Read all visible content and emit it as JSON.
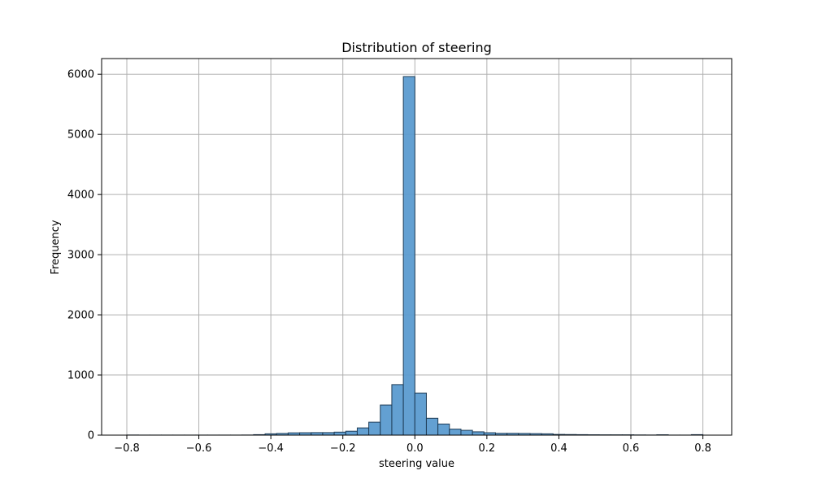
{
  "chart_data": {
    "type": "bar",
    "title": "Distribution of steering",
    "xlabel": "steering value",
    "ylabel": "Frequency",
    "xlim": [
      -0.87,
      0.88
    ],
    "ylim": [
      0,
      6260
    ],
    "grid": true,
    "bar_color": "#5b9bd0",
    "bar_edge_color": "#1f3d57",
    "x_ticks": [
      {
        "value": -0.8,
        "label": "−0.8"
      },
      {
        "value": -0.6,
        "label": "−0.6"
      },
      {
        "value": -0.4,
        "label": "−0.4"
      },
      {
        "value": -0.2,
        "label": "−0.2"
      },
      {
        "value": 0.0,
        "label": "0.0"
      },
      {
        "value": 0.2,
        "label": "0.2"
      },
      {
        "value": 0.4,
        "label": "0.4"
      },
      {
        "value": 0.6,
        "label": "0.6"
      },
      {
        "value": 0.8,
        "label": "0.8"
      }
    ],
    "y_ticks": [
      {
        "value": 0,
        "label": "0"
      },
      {
        "value": 1000,
        "label": "1000"
      },
      {
        "value": 2000,
        "label": "2000"
      },
      {
        "value": 3000,
        "label": "3000"
      },
      {
        "value": 4000,
        "label": "4000"
      },
      {
        "value": 5000,
        "label": "5000"
      },
      {
        "value": 6000,
        "label": "6000"
      }
    ],
    "bins": [
      {
        "x0": -0.8,
        "x1": -0.768,
        "value": 2
      },
      {
        "x0": -0.768,
        "x1": -0.736,
        "value": 1
      },
      {
        "x0": -0.736,
        "x1": -0.704,
        "value": 1
      },
      {
        "x0": -0.704,
        "x1": -0.672,
        "value": 1
      },
      {
        "x0": -0.672,
        "x1": -0.64,
        "value": 1
      },
      {
        "x0": -0.64,
        "x1": -0.608,
        "value": 1
      },
      {
        "x0": -0.608,
        "x1": -0.576,
        "value": 1
      },
      {
        "x0": -0.576,
        "x1": -0.544,
        "value": 1
      },
      {
        "x0": -0.544,
        "x1": -0.512,
        "value": 1
      },
      {
        "x0": -0.512,
        "x1": -0.48,
        "value": 1
      },
      {
        "x0": -0.48,
        "x1": -0.448,
        "value": 2
      },
      {
        "x0": -0.448,
        "x1": -0.416,
        "value": 8
      },
      {
        "x0": -0.416,
        "x1": -0.384,
        "value": 22
      },
      {
        "x0": -0.384,
        "x1": -0.352,
        "value": 28
      },
      {
        "x0": -0.352,
        "x1": -0.32,
        "value": 38
      },
      {
        "x0": -0.32,
        "x1": -0.288,
        "value": 40
      },
      {
        "x0": -0.288,
        "x1": -0.256,
        "value": 42
      },
      {
        "x0": -0.256,
        "x1": -0.224,
        "value": 42
      },
      {
        "x0": -0.224,
        "x1": -0.192,
        "value": 50
      },
      {
        "x0": -0.192,
        "x1": -0.16,
        "value": 65
      },
      {
        "x0": -0.16,
        "x1": -0.128,
        "value": 120
      },
      {
        "x0": -0.128,
        "x1": -0.096,
        "value": 215
      },
      {
        "x0": -0.096,
        "x1": -0.064,
        "value": 500
      },
      {
        "x0": -0.064,
        "x1": -0.032,
        "value": 840
      },
      {
        "x0": -0.032,
        "x1": 0.0,
        "value": 5960
      },
      {
        "x0": 0.0,
        "x1": 0.032,
        "value": 700
      },
      {
        "x0": 0.032,
        "x1": 0.064,
        "value": 280
      },
      {
        "x0": 0.064,
        "x1": 0.096,
        "value": 185
      },
      {
        "x0": 0.096,
        "x1": 0.128,
        "value": 100
      },
      {
        "x0": 0.128,
        "x1": 0.16,
        "value": 80
      },
      {
        "x0": 0.16,
        "x1": 0.192,
        "value": 55
      },
      {
        "x0": 0.192,
        "x1": 0.224,
        "value": 40
      },
      {
        "x0": 0.224,
        "x1": 0.256,
        "value": 30
      },
      {
        "x0": 0.256,
        "x1": 0.288,
        "value": 30
      },
      {
        "x0": 0.288,
        "x1": 0.32,
        "value": 28
      },
      {
        "x0": 0.32,
        "x1": 0.352,
        "value": 25
      },
      {
        "x0": 0.352,
        "x1": 0.384,
        "value": 22
      },
      {
        "x0": 0.384,
        "x1": 0.416,
        "value": 12
      },
      {
        "x0": 0.416,
        "x1": 0.448,
        "value": 10
      },
      {
        "x0": 0.448,
        "x1": 0.48,
        "value": 8
      },
      {
        "x0": 0.48,
        "x1": 0.512,
        "value": 6
      },
      {
        "x0": 0.512,
        "x1": 0.544,
        "value": 5
      },
      {
        "x0": 0.544,
        "x1": 0.576,
        "value": 5
      },
      {
        "x0": 0.576,
        "x1": 0.608,
        "value": 5
      },
      {
        "x0": 0.608,
        "x1": 0.64,
        "value": 3
      },
      {
        "x0": 0.64,
        "x1": 0.672,
        "value": 2
      },
      {
        "x0": 0.672,
        "x1": 0.704,
        "value": 6
      },
      {
        "x0": 0.704,
        "x1": 0.736,
        "value": 1
      },
      {
        "x0": 0.736,
        "x1": 0.768,
        "value": 1
      },
      {
        "x0": 0.768,
        "x1": 0.8,
        "value": 8
      }
    ]
  }
}
